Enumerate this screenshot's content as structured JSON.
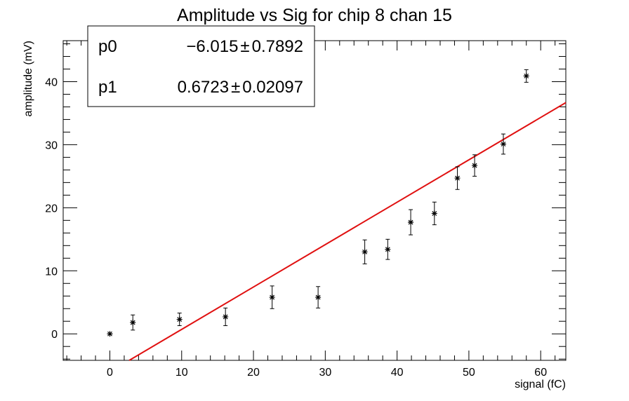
{
  "chart_data": {
    "type": "scatter",
    "title": "Amplitude vs Sig for chip 8 chan 15",
    "xlabel": "signal (fC)",
    "ylabel": "amplitude (mV)",
    "xlim": [
      -6.5,
      63.5
    ],
    "ylim": [
      -4.2,
      46.5
    ],
    "x_ticks": [
      0,
      10,
      20,
      30,
      40,
      50,
      60
    ],
    "y_ticks": [
      0,
      10,
      20,
      30,
      40
    ],
    "grid": false,
    "points": [
      {
        "x": 0.0,
        "y": 0.0,
        "err": 0.0
      },
      {
        "x": 3.2,
        "y": 1.8,
        "err": 1.2
      },
      {
        "x": 9.7,
        "y": 2.3,
        "err": 1.0
      },
      {
        "x": 16.1,
        "y": 2.7,
        "err": 1.4
      },
      {
        "x": 22.6,
        "y": 5.8,
        "err": 1.8
      },
      {
        "x": 29.0,
        "y": 5.8,
        "err": 1.7
      },
      {
        "x": 35.5,
        "y": 13.0,
        "err": 1.9
      },
      {
        "x": 38.7,
        "y": 13.4,
        "err": 1.6
      },
      {
        "x": 41.9,
        "y": 17.7,
        "err": 2.0
      },
      {
        "x": 45.2,
        "y": 19.1,
        "err": 1.8
      },
      {
        "x": 48.4,
        "y": 24.7,
        "err": 1.8
      },
      {
        "x": 50.8,
        "y": 26.7,
        "err": 1.7
      },
      {
        "x": 54.8,
        "y": 30.1,
        "err": 1.6
      },
      {
        "x": 58.0,
        "y": 40.9,
        "err": 1.0
      }
    ],
    "fit": {
      "p0": -6.015,
      "p1": 0.6723,
      "color": "#e01010"
    },
    "stats_box": {
      "rows": [
        {
          "name": "p0",
          "value": "−6.015",
          "error": "0.7892"
        },
        {
          "name": "p1",
          "value": "0.6723",
          "error": "0.02097"
        }
      ],
      "pm": "±"
    }
  }
}
